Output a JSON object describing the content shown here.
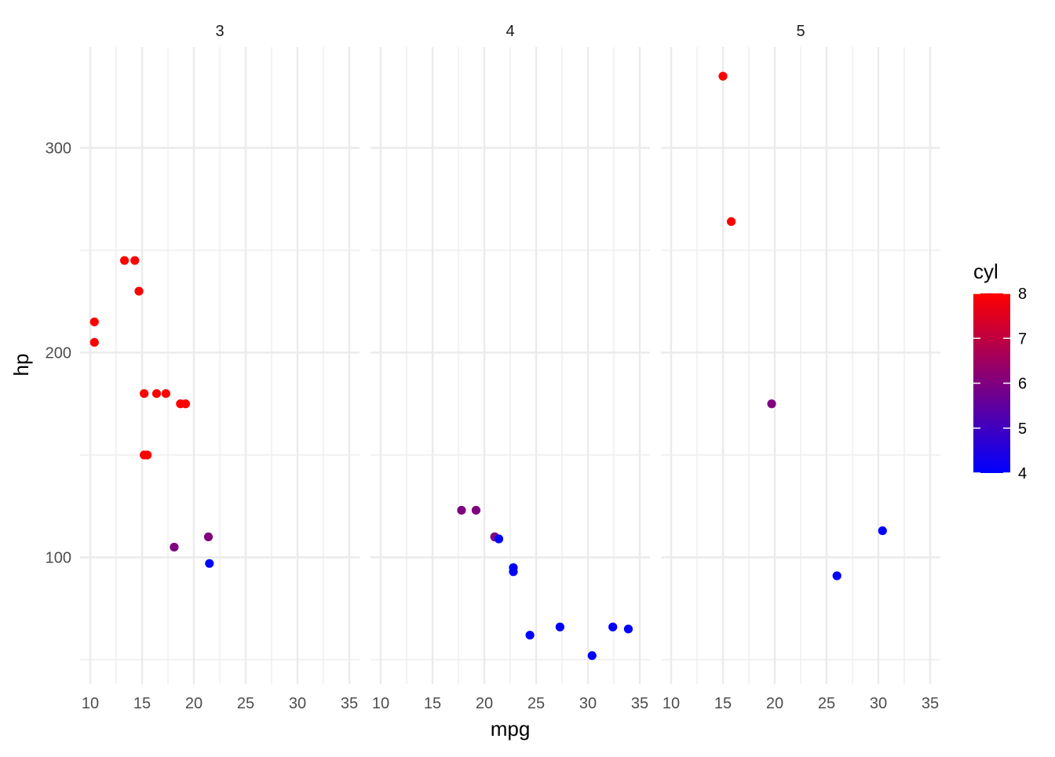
{
  "chart_data": {
    "type": "scatter",
    "facet_variable": "gear",
    "facets": [
      "3",
      "4",
      "5"
    ],
    "xlabel": "mpg",
    "ylabel": "hp",
    "xlim": [
      10,
      35
    ],
    "ylim": [
      52,
      335
    ],
    "x_ticks": [
      10,
      15,
      20,
      25,
      30,
      35
    ],
    "y_ticks": [
      100,
      200,
      300
    ],
    "grid": true,
    "color_scale": {
      "title": "cyl",
      "low_value": 4,
      "high_value": 8,
      "low_color": "#0000ff",
      "high_color": "#ff0000",
      "ticks": [
        4,
        5,
        6,
        7,
        8
      ]
    },
    "legend_position": "right",
    "points": [
      {
        "facet": "3",
        "mpg": 10.4,
        "hp": 215,
        "cyl": 8
      },
      {
        "facet": "3",
        "mpg": 10.4,
        "hp": 205,
        "cyl": 8
      },
      {
        "facet": "3",
        "mpg": 13.3,
        "hp": 245,
        "cyl": 8
      },
      {
        "facet": "3",
        "mpg": 14.3,
        "hp": 245,
        "cyl": 8
      },
      {
        "facet": "3",
        "mpg": 14.7,
        "hp": 230,
        "cyl": 8
      },
      {
        "facet": "3",
        "mpg": 15.2,
        "hp": 180,
        "cyl": 8
      },
      {
        "facet": "3",
        "mpg": 15.2,
        "hp": 150,
        "cyl": 8
      },
      {
        "facet": "3",
        "mpg": 15.5,
        "hp": 150,
        "cyl": 8
      },
      {
        "facet": "3",
        "mpg": 16.4,
        "hp": 180,
        "cyl": 8
      },
      {
        "facet": "3",
        "mpg": 17.3,
        "hp": 180,
        "cyl": 8
      },
      {
        "facet": "3",
        "mpg": 18.7,
        "hp": 175,
        "cyl": 8
      },
      {
        "facet": "3",
        "mpg": 19.2,
        "hp": 175,
        "cyl": 8
      },
      {
        "facet": "3",
        "mpg": 18.1,
        "hp": 105,
        "cyl": 6
      },
      {
        "facet": "3",
        "mpg": 21.4,
        "hp": 110,
        "cyl": 6
      },
      {
        "facet": "3",
        "mpg": 21.5,
        "hp": 97,
        "cyl": 4
      },
      {
        "facet": "4",
        "mpg": 21.0,
        "hp": 110,
        "cyl": 6
      },
      {
        "facet": "4",
        "mpg": 21.0,
        "hp": 110,
        "cyl": 6
      },
      {
        "facet": "4",
        "mpg": 17.8,
        "hp": 123,
        "cyl": 6
      },
      {
        "facet": "4",
        "mpg": 19.2,
        "hp": 123,
        "cyl": 6
      },
      {
        "facet": "4",
        "mpg": 21.4,
        "hp": 109,
        "cyl": 4
      },
      {
        "facet": "4",
        "mpg": 22.8,
        "hp": 93,
        "cyl": 4
      },
      {
        "facet": "4",
        "mpg": 22.8,
        "hp": 95,
        "cyl": 4
      },
      {
        "facet": "4",
        "mpg": 24.4,
        "hp": 62,
        "cyl": 4
      },
      {
        "facet": "4",
        "mpg": 27.3,
        "hp": 66,
        "cyl": 4
      },
      {
        "facet": "4",
        "mpg": 30.4,
        "hp": 52,
        "cyl": 4
      },
      {
        "facet": "4",
        "mpg": 32.4,
        "hp": 66,
        "cyl": 4
      },
      {
        "facet": "4",
        "mpg": 33.9,
        "hp": 65,
        "cyl": 4
      },
      {
        "facet": "5",
        "mpg": 15.0,
        "hp": 335,
        "cyl": 8
      },
      {
        "facet": "5",
        "mpg": 15.8,
        "hp": 264,
        "cyl": 8
      },
      {
        "facet": "5",
        "mpg": 19.7,
        "hp": 175,
        "cyl": 6
      },
      {
        "facet": "5",
        "mpg": 26.0,
        "hp": 91,
        "cyl": 4
      },
      {
        "facet": "5",
        "mpg": 30.4,
        "hp": 113,
        "cyl": 4
      }
    ]
  }
}
